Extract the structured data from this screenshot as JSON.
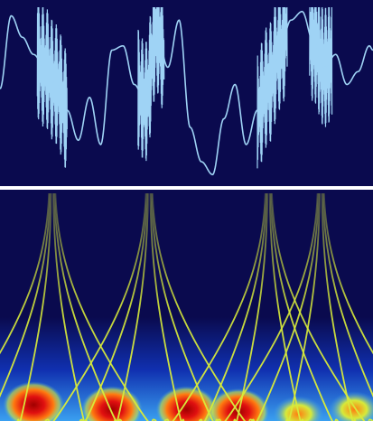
{
  "chart_data": [
    {
      "type": "line",
      "panel": "signal",
      "title": "",
      "xlabel": "",
      "ylabel": "",
      "grid": false,
      "legend": "none",
      "xlim": [
        0,
        1
      ],
      "ylim": [
        -1,
        1
      ],
      "series": [
        {
          "color": "#9fd3f5",
          "x": [
            0.0,
            0.03,
            0.06,
            0.09,
            0.12,
            0.15,
            0.18,
            0.21,
            0.24,
            0.27,
            0.3,
            0.33,
            0.36,
            0.39,
            0.42,
            0.45,
            0.48,
            0.51,
            0.54,
            0.57,
            0.6,
            0.63,
            0.66,
            0.69,
            0.72,
            0.75,
            0.78,
            0.81,
            0.84,
            0.87,
            0.9,
            0.93,
            0.96,
            0.99,
            1.0
          ],
          "y": [
            0.05,
            0.9,
            0.65,
            0.45,
            0.3,
            0.1,
            -0.2,
            -0.55,
            -0.05,
            -0.6,
            0.5,
            0.55,
            0.1,
            -0.1,
            0.7,
            0.3,
            0.85,
            -0.4,
            -0.8,
            -0.95,
            -0.3,
            0.1,
            -0.6,
            -0.2,
            0.1,
            0.5,
            0.85,
            0.95,
            0.6,
            0.3,
            0.45,
            0.1,
            0.25,
            0.55,
            0.5
          ]
        }
      ],
      "bursts": [
        {
          "x_start": 0.1,
          "x_end": 0.18,
          "color": "#9fd3f5"
        },
        {
          "x_start": 0.37,
          "x_end": 0.44,
          "color": "#9fd3f5"
        },
        {
          "x_start": 0.69,
          "x_end": 0.77,
          "color": "#9fd3f5"
        },
        {
          "x_start": 0.83,
          "x_end": 0.89,
          "color": "#9fd3f5"
        }
      ],
      "colors": {
        "background": "#0a0a4e",
        "line": "#9fd3f5"
      }
    },
    {
      "type": "heatmap",
      "panel": "scalogram",
      "title": "",
      "xlabel": "",
      "ylabel": "",
      "grid": false,
      "legend": "none",
      "colormap": [
        "#0a0a4e",
        "#1030b0",
        "#3aa0f0",
        "#bfe8ff",
        "#d7ea3a",
        "#ff7a10",
        "#e01010",
        "#a00000"
      ],
      "ridges": [
        {
          "x": 0.14,
          "color": "#d7ea3a"
        },
        {
          "x": 0.4,
          "color": "#d7ea3a"
        },
        {
          "x": 0.72,
          "color": "#d7ea3a"
        },
        {
          "x": 0.86,
          "color": "#d7ea3a"
        }
      ],
      "hotspots": [
        {
          "x": 0.09,
          "y": 0.93,
          "level": "high"
        },
        {
          "x": 0.3,
          "y": 0.95,
          "level": "high"
        },
        {
          "x": 0.5,
          "y": 0.95,
          "level": "high"
        },
        {
          "x": 0.64,
          "y": 0.96,
          "level": "high"
        },
        {
          "x": 0.8,
          "y": 0.97,
          "level": "medium"
        },
        {
          "x": 0.95,
          "y": 0.95,
          "level": "medium"
        }
      ],
      "colors": {
        "background": "#0a0a4e",
        "divider": "#ffffff"
      }
    }
  ]
}
